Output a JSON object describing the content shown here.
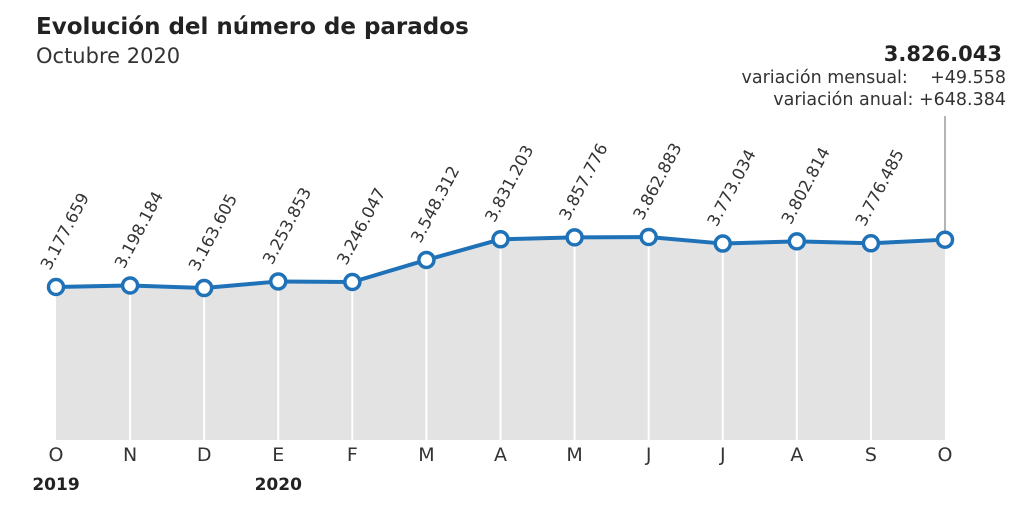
{
  "title": "Evolución del número de parados",
  "subtitle": "Octubre 2020",
  "summary": {
    "latest_value": "3.826.043",
    "monthly_label": "variación mensual:",
    "monthly_value": "+49.558",
    "annual_label": "variación anual:",
    "annual_value": "+648.384"
  },
  "colors": {
    "line": "#1f72b8",
    "area": "#e3e3e3",
    "marker_fill": "#ffffff",
    "gridline": "#ffffff",
    "text": "#333333",
    "callout_line": "#9a9a9a"
  },
  "chart_data": {
    "type": "area",
    "title": "Evolución del número de parados",
    "subtitle": "Octubre 2020",
    "xlabel": "",
    "ylabel": "",
    "categories": [
      "O",
      "N",
      "D",
      "E",
      "F",
      "M",
      "A",
      "M",
      "J",
      "J",
      "A",
      "S",
      "O"
    ],
    "year_labels": [
      {
        "index": 0,
        "label": "2019"
      },
      {
        "index": 3,
        "label": "2020"
      }
    ],
    "values": [
      3177659,
      3198184,
      3163605,
      3253853,
      3246047,
      3548312,
      3831203,
      3857776,
      3862883,
      3773034,
      3802814,
      3776485,
      3826043
    ],
    "data_labels": [
      "3.177.659",
      "3.198.184",
      "3.163.605",
      "3.253.853",
      "3.246.047",
      "3.548.312",
      "3.831.203",
      "3.857.776",
      "3.862.883",
      "3.773.034",
      "3.802.814",
      "3.776.485",
      ""
    ],
    "grid": true,
    "legend": "none"
  }
}
